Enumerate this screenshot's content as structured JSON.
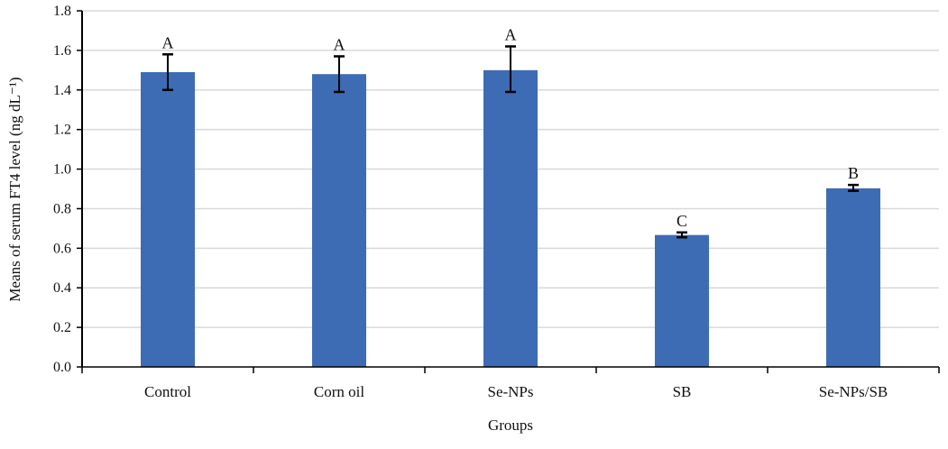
{
  "chart_data": {
    "type": "bar",
    "title": "",
    "xlabel": "Groups",
    "ylabel": "Means of serum FT4 level (ng dL⁻¹)",
    "ylim": [
      0,
      1.8
    ],
    "yticks": [
      "0.0",
      "0.2",
      "0.4",
      "0.6",
      "0.8",
      "1.0",
      "1.2",
      "1.4",
      "1.6",
      "1.8"
    ],
    "grid": true,
    "categories": [
      "Control",
      "Corn oil",
      "Se-NPs",
      "SB",
      "Se-NPs/SB"
    ],
    "values": [
      1.49,
      1.48,
      1.5,
      0.667,
      0.903
    ],
    "error_low": [
      1.4,
      1.39,
      1.39,
      0.655,
      0.89
    ],
    "error_high": [
      1.58,
      1.57,
      1.62,
      0.68,
      0.92
    ],
    "significance_letters": [
      "A",
      "A",
      "A",
      "C",
      "B"
    ],
    "bar_color": "#3d6cb4",
    "grid_color": "#d9d9d9"
  }
}
